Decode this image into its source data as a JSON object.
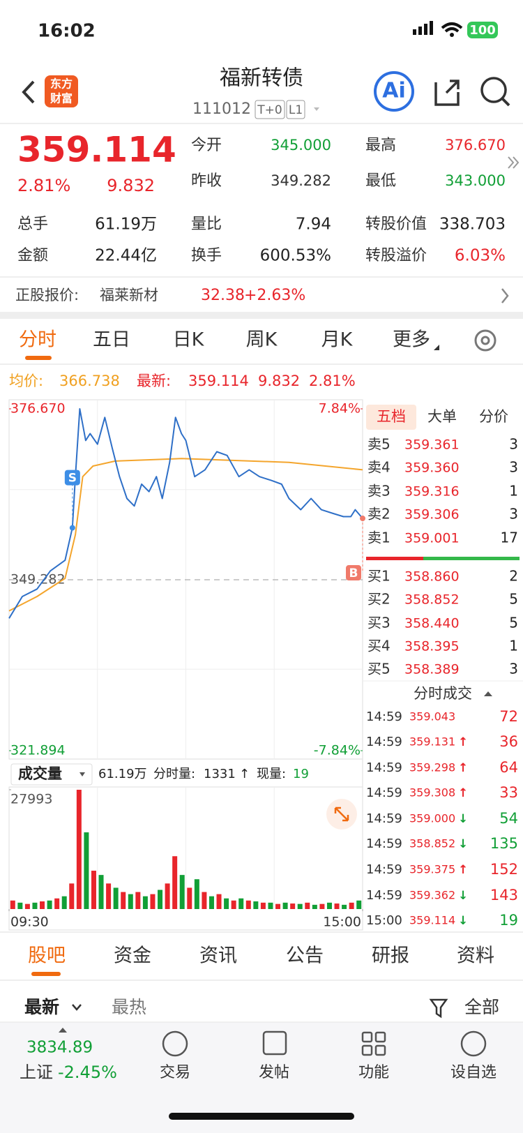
{
  "status_bar": {
    "time": "16:02",
    "battery": "100"
  },
  "header": {
    "logo": [
      "东方",
      "财富"
    ],
    "title": "福新转债",
    "code": "111012",
    "tags": [
      "T+0",
      "L1"
    ],
    "ai": "Ai"
  },
  "quote": {
    "price": "359.114",
    "change_pct": "2.81%",
    "change": "9.832",
    "stats": [
      {
        "label": "今开",
        "value": "345.000",
        "color": "#119f36"
      },
      {
        "label": "最高",
        "value": "376.670",
        "color": "#e8252b"
      },
      {
        "label": "昨收",
        "value": "349.282",
        "color": "#333333"
      },
      {
        "label": "最低",
        "value": "343.000",
        "color": "#119f36"
      }
    ],
    "stats2": [
      {
        "label": "总手",
        "value": "61.19万",
        "color": "#222222"
      },
      {
        "label": "量比",
        "value": "7.94",
        "color": "#222222"
      },
      {
        "label": "转股价值",
        "value": "338.703",
        "color": "#222222"
      },
      {
        "label": "金额",
        "value": "22.44亿",
        "color": "#222222"
      },
      {
        "label": "换手",
        "value": "600.53%",
        "color": "#222222"
      },
      {
        "label": "转股溢价",
        "value": "6.03%",
        "color": "#e8252b"
      }
    ]
  },
  "underlying": {
    "label": "正股报价:",
    "name": "福莱新材",
    "price": "32.38",
    "change": "+2.63%"
  },
  "chart_tabs": [
    "分时",
    "五日",
    "日K",
    "周K",
    "月K",
    "更多"
  ],
  "chart_info": {
    "avg_label": "均价:",
    "avg": "366.738",
    "last_label": "最新:",
    "last": "359.114",
    "change": "9.832",
    "pct": "2.81%"
  },
  "chart_data": {
    "type": "line",
    "xlim": [
      0,
      240
    ],
    "ylim": [
      321.894,
      376.67
    ],
    "y2lim": [
      -7.84,
      7.84
    ],
    "grid": true,
    "xticks": [
      {
        "value": 0,
        "label": "09:30"
      },
      {
        "value": 240,
        "label": "15:00"
      }
    ],
    "yticks": [
      {
        "value": 376.67,
        "label": "376.670"
      },
      {
        "value": 349.282,
        "label": "349.282"
      },
      {
        "value": 321.894,
        "label": "321.894"
      }
    ],
    "y2ticks": [
      {
        "value": 7.84,
        "label": "7.84%"
      },
      {
        "value": -7.84,
        "label": "-7.84%"
      }
    ],
    "price_line": {
      "color": "#2e6fc7",
      "x": [
        0,
        9,
        19,
        28,
        38,
        43,
        45,
        48,
        52,
        55,
        60,
        65,
        70,
        75,
        80,
        85,
        90,
        95,
        100,
        104,
        109,
        113,
        117,
        120,
        126,
        133,
        141,
        148,
        156,
        163,
        170,
        178,
        185,
        190,
        198,
        205,
        212,
        220,
        227,
        232,
        235,
        240
      ],
      "values": [
        343.1,
        346.6,
        347.8,
        350.7,
        352.4,
        357.6,
        365.8,
        376.67,
        371.6,
        372.7,
        371.0,
        375.3,
        370.4,
        365.8,
        362.3,
        361.1,
        364.6,
        363.4,
        365.8,
        362.3,
        368.1,
        375.3,
        372.7,
        371.6,
        365.8,
        366.9,
        369.8,
        369.2,
        365.8,
        366.9,
        365.8,
        365.2,
        364.6,
        362.3,
        360.5,
        362.3,
        360.5,
        359.9,
        359.4,
        359.4,
        360.5,
        359.114
      ]
    },
    "average_line": {
      "color": "#f4a52c",
      "x": [
        0,
        19,
        38,
        45,
        50,
        57,
        72,
        117,
        190,
        240
      ],
      "values": [
        344.3,
        346.6,
        349.5,
        356.5,
        365.8,
        367.5,
        368.3,
        368.7,
        368.1,
        366.9
      ]
    },
    "markers": [
      {
        "label": "S",
        "x": 43,
        "value": 357.6,
        "color": "#3d8ee6"
      },
      {
        "label": "B",
        "x": 240,
        "value": 359.114,
        "color": "#f07a6a"
      }
    ],
    "volume": {
      "ylim": [
        0,
        27993
      ],
      "yticks": [
        27993
      ],
      "x": [
        2.5,
        7.5,
        12.5,
        17.5,
        22.5,
        27.5,
        32.5,
        37.5,
        42.5,
        47.5,
        52.5,
        57.5,
        62.5,
        67.5,
        72.5,
        77.5,
        82.5,
        87.5,
        92.5,
        97.5,
        102.5,
        107.5,
        112.5,
        117.5,
        122.5,
        127.5,
        132.5,
        137.5,
        142.5,
        147.5,
        152.5,
        157.5,
        162.5,
        167.5,
        172.5,
        177.5,
        182.5,
        187.5,
        192.5,
        197.5,
        202.5,
        207.5,
        212.5,
        217.5,
        222.5,
        227.5,
        232.5,
        237.5
      ],
      "values": [
        2000,
        1500,
        1200,
        1500,
        1800,
        2000,
        2500,
        3000,
        6000,
        27993,
        18000,
        9000,
        8000,
        6000,
        5000,
        4000,
        3500,
        4000,
        3000,
        3500,
        4500,
        6000,
        12400,
        8000,
        5000,
        7000,
        4000,
        3000,
        3500,
        2500,
        2000,
        2500,
        2000,
        1800,
        1500,
        1500,
        1200,
        1500,
        1300,
        1200,
        1500,
        1000,
        1200,
        1500,
        1300,
        1000,
        1500,
        2000
      ],
      "colors": [
        "#e8252b",
        "#119f36",
        "#e8252b",
        "#119f36",
        "#e8252b",
        "#119f36",
        "#e8252b",
        "#119f36",
        "#e8252b",
        "#e8252b",
        "#119f36",
        "#e8252b",
        "#119f36",
        "#e8252b",
        "#119f36",
        "#e8252b",
        "#119f36",
        "#e8252b",
        "#119f36",
        "#e8252b",
        "#119f36",
        "#e8252b",
        "#e8252b",
        "#119f36",
        "#e8252b",
        "#119f36",
        "#e8252b",
        "#119f36",
        "#e8252b",
        "#119f36",
        "#e8252b",
        "#119f36",
        "#e8252b",
        "#119f36",
        "#e8252b",
        "#119f36",
        "#e8252b",
        "#119f36",
        "#e8252b",
        "#119f36",
        "#e8252b",
        "#119f36",
        "#e8252b",
        "#119f36",
        "#e8252b",
        "#119f36",
        "#e8252b",
        "#119f36"
      ]
    }
  },
  "volume_bar": {
    "selector": "成交量",
    "total": "61.19万",
    "minute_label": "分时量:",
    "minute": "1331",
    "arrow": "↑",
    "now_label": "现量:",
    "now": "19"
  },
  "book_tabs": [
    "五档",
    "大单",
    "分价"
  ],
  "asks": [
    {
      "label": "卖5",
      "price": "359.361",
      "qty": "3"
    },
    {
      "label": "卖4",
      "price": "359.360",
      "qty": "3"
    },
    {
      "label": "卖3",
      "price": "359.316",
      "qty": "1"
    },
    {
      "label": "卖2",
      "price": "359.306",
      "qty": "3"
    },
    {
      "label": "卖1",
      "price": "359.001",
      "qty": "17"
    }
  ],
  "bids": [
    {
      "label": "买1",
      "price": "358.860",
      "qty": "2"
    },
    {
      "label": "买2",
      "price": "358.852",
      "qty": "5"
    },
    {
      "label": "买3",
      "price": "358.440",
      "qty": "5"
    },
    {
      "label": "买4",
      "price": "358.395",
      "qty": "1"
    },
    {
      "label": "买5",
      "price": "358.389",
      "qty": "3"
    }
  ],
  "trades_title": "分时成交",
  "trades": [
    {
      "time": "14:59",
      "price": "359.043",
      "qty": "72",
      "color": "#e8252b"
    },
    {
      "time": "14:59",
      "price": "359.131",
      "dir": "↑",
      "qty": "36",
      "color": "#e8252b"
    },
    {
      "time": "14:59",
      "price": "359.298",
      "dir": "↑",
      "qty": "64",
      "color": "#e8252b"
    },
    {
      "time": "14:59",
      "price": "359.308",
      "dir": "↑",
      "qty": "33",
      "color": "#e8252b"
    },
    {
      "time": "14:59",
      "price": "359.000",
      "dir": "↓",
      "qty": "54",
      "color": "#119f36"
    },
    {
      "time": "14:59",
      "price": "358.852",
      "dir": "↓",
      "qty": "135",
      "color": "#119f36"
    },
    {
      "time": "14:59",
      "price": "359.375",
      "dir": "↑",
      "qty": "152",
      "color": "#e8252b"
    },
    {
      "time": "14:59",
      "price": "359.362",
      "dir": "↓",
      "qty": "143",
      "color": "#e8252b"
    },
    {
      "time": "15:00",
      "price": "359.114",
      "dir": "↓",
      "qty": "19",
      "color": "#119f36"
    }
  ],
  "news_tabs": [
    "股吧",
    "资金",
    "资讯",
    "公告",
    "研报",
    "资料"
  ],
  "filters": {
    "latest": "最新",
    "hot": "最热",
    "all": "全部"
  },
  "bottom": {
    "index": "3834.89",
    "index_name": "上证",
    "index_pct": "-2.45%",
    "items": [
      "交易",
      "发帖",
      "功能",
      "设自选"
    ]
  }
}
